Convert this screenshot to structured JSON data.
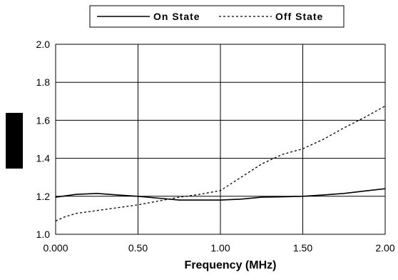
{
  "chart_data": {
    "type": "line",
    "xlabel": "Frequency (MHz)",
    "ylabel": "",
    "xlim": [
      0,
      2
    ],
    "ylim": [
      1.0,
      2.0
    ],
    "x_ticks": [
      "0.000",
      "0.50",
      "1.00",
      "1.50",
      "2.00"
    ],
    "y_ticks": [
      "1.0",
      "1.2",
      "1.4",
      "1.6",
      "1.8",
      "2.0"
    ],
    "grid": true,
    "legend_position": "top",
    "series": [
      {
        "name": "On State",
        "style": "solid",
        "x": [
          0,
          0.125,
          0.25,
          0.375,
          0.5,
          0.625,
          0.75,
          0.875,
          1.0,
          1.125,
          1.25,
          1.375,
          1.5,
          1.625,
          1.75,
          1.875,
          2.0
        ],
        "y": [
          1.195,
          1.21,
          1.215,
          1.207,
          1.2,
          1.19,
          1.18,
          1.18,
          1.18,
          1.185,
          1.195,
          1.197,
          1.2,
          1.207,
          1.215,
          1.228,
          1.24
        ]
      },
      {
        "name": "Off State",
        "style": "dashed",
        "x": [
          0,
          0.05,
          0.125,
          0.25,
          0.375,
          0.5,
          0.625,
          0.75,
          0.875,
          1.0,
          1.125,
          1.25,
          1.375,
          1.5,
          1.625,
          1.75,
          1.875,
          2.0
        ],
        "y": [
          1.07,
          1.09,
          1.11,
          1.125,
          1.14,
          1.155,
          1.175,
          1.195,
          1.21,
          1.23,
          1.3,
          1.37,
          1.42,
          1.45,
          1.5,
          1.56,
          1.615,
          1.675
        ]
      }
    ]
  },
  "colors": {
    "line": "#000000",
    "grid": "#000000",
    "background": "#ffffff"
  }
}
